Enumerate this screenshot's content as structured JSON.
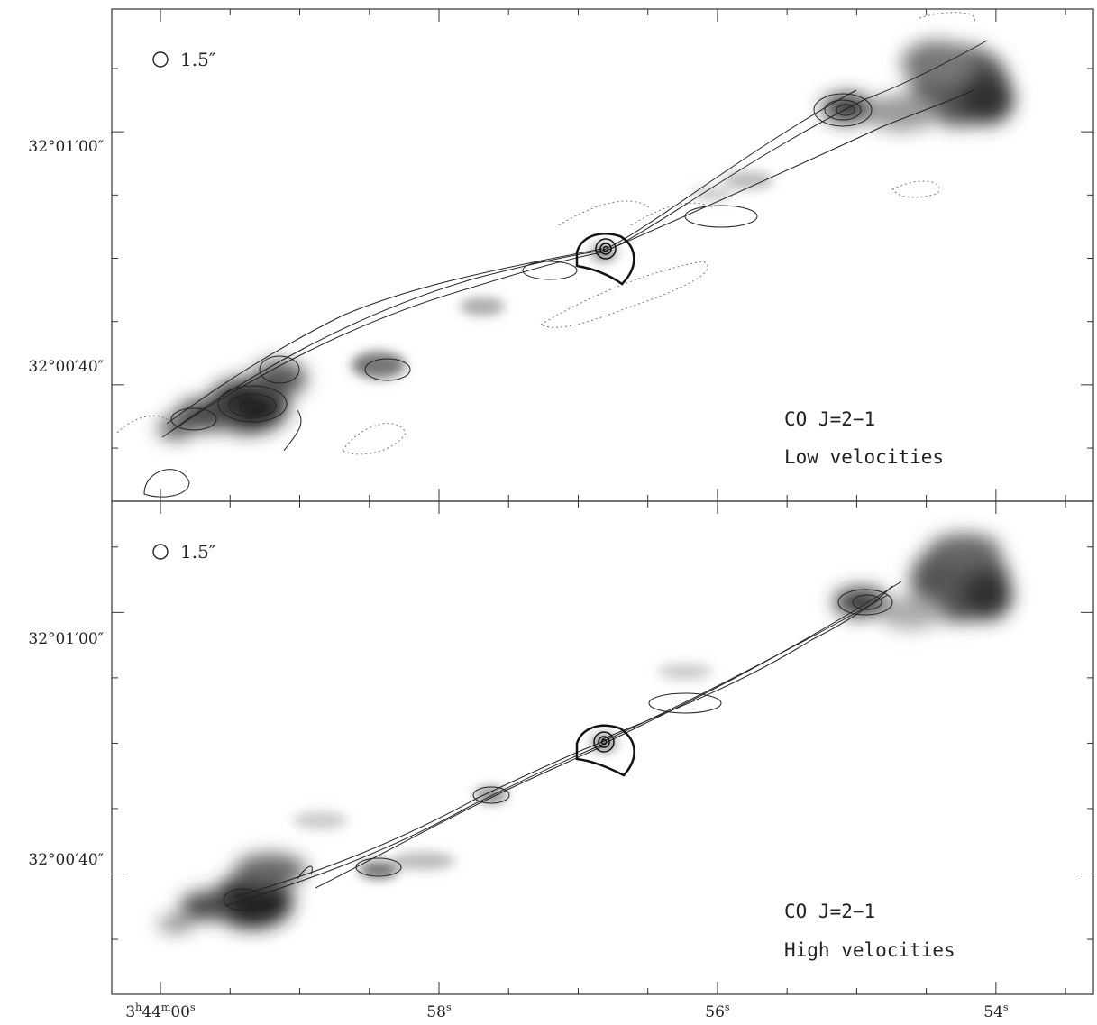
{
  "chart_data": [
    {
      "type": "contour-over-image",
      "panel": "top",
      "line": "CO J=2−1",
      "annotation": "Low velocities",
      "beam_label": "1.5″",
      "dec_ticks": [
        "32°01′00″",
        "32°00′40″"
      ],
      "dec_values_arcsec": [
        60,
        40
      ],
      "xlim_s": [
        60.35,
        53.3
      ],
      "ylim_arcsec": [
        30.8,
        69.7
      ]
    },
    {
      "type": "contour-over-image",
      "panel": "bottom",
      "line": "CO J=2−1",
      "annotation": "High velocities",
      "beam_label": "1.5″",
      "dec_ticks": [
        "32°01′00″",
        "32°00′40″"
      ],
      "dec_values_arcsec": [
        60,
        40
      ],
      "xlim_s": [
        60.35,
        53.3
      ],
      "ylim_arcsec": [
        30.8,
        68.5
      ]
    }
  ],
  "x_axis": {
    "tick_values_s": [
      60,
      58,
      56,
      54
    ],
    "first_tick": {
      "h": "3",
      "m": "44",
      "s": "00"
    },
    "labels": [
      "58",
      "56",
      "54"
    ],
    "sec_unit": "s"
  },
  "colors": {
    "ink": "#222222",
    "frame": "#333333"
  }
}
